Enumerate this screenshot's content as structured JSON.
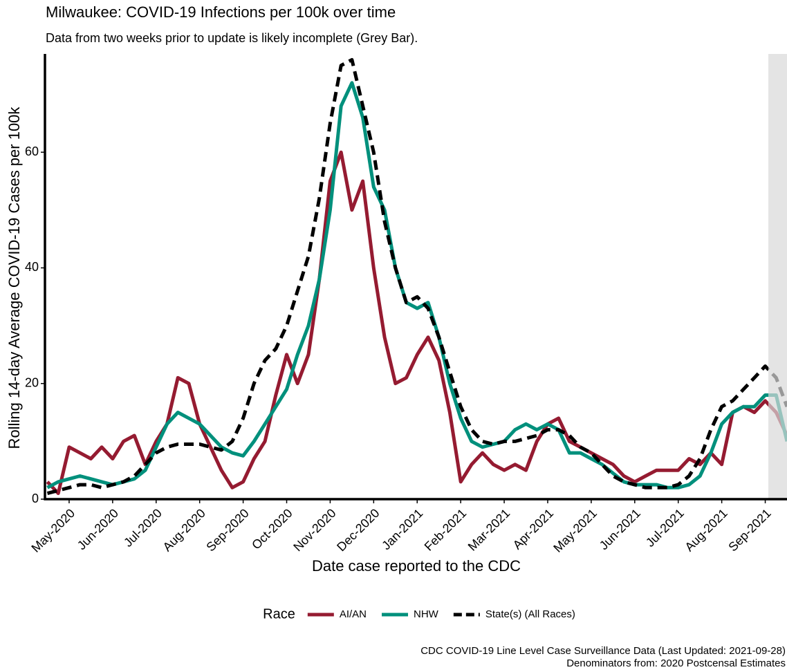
{
  "chart_data": {
    "type": "line",
    "title": "Milwaukee: COVID-19 Infections per 100k over time",
    "subtitle": "Data from two weeks prior to update is likely incomplete (Grey Bar).",
    "x_label": "Date case reported to the CDC",
    "y_label": "Rolling 14-day Average COVID-19 Cases per 100k",
    "legend_title": "Race",
    "legend_position": "bottom",
    "caption": [
      "CDC COVID-19 Line Level Case Surveillance Data (Last Updated: 2021-09-28)",
      "Denominators from: 2020 Postcensal Estimates"
    ],
    "categories": [
      null,
      null,
      "May-2020",
      null,
      null,
      null,
      "Jun-2020",
      null,
      null,
      null,
      "Jul-2020",
      null,
      null,
      null,
      "Aug-2020",
      null,
      null,
      null,
      "Sep-2020",
      null,
      null,
      null,
      "Oct-2020",
      null,
      null,
      null,
      "Nov-2020",
      null,
      null,
      null,
      "Dec-2020",
      null,
      null,
      null,
      "Jan-2021",
      null,
      null,
      null,
      "Feb-2021",
      null,
      null,
      null,
      "Mar-2021",
      null,
      null,
      null,
      "Apr-2021",
      null,
      null,
      null,
      "May-2021",
      null,
      null,
      null,
      "Jun-2021",
      null,
      null,
      null,
      "Jul-2021",
      null,
      null,
      null,
      "Aug-2021",
      null,
      null,
      null,
      "Sep-2021",
      null,
      null
    ],
    "ylim": [
      0,
      77
    ],
    "yticks": [
      0,
      20,
      40,
      60
    ],
    "grid": false,
    "series": [
      {
        "name": "AI/AN",
        "color": "#951b31",
        "linestyle": "solid",
        "values": [
          3,
          1,
          9,
          8,
          7,
          9,
          7,
          10,
          11,
          6,
          10,
          13,
          21,
          20,
          13,
          9,
          5,
          2,
          3,
          7,
          10,
          18,
          25,
          20,
          25,
          38,
          55,
          60,
          50,
          55,
          40,
          28,
          20,
          21,
          25,
          28,
          24,
          15,
          3,
          6,
          8,
          6,
          5,
          6,
          5,
          10,
          13,
          14,
          10,
          9,
          8,
          7,
          6,
          4,
          3,
          4,
          5,
          5,
          5,
          7,
          6,
          8,
          6,
          15,
          16,
          15,
          17,
          15,
          11
        ]
      },
      {
        "name": "NHW",
        "color": "#00907c",
        "linestyle": "solid",
        "values": [
          2,
          3,
          3.5,
          4,
          3.5,
          3,
          2.5,
          3,
          3.5,
          5,
          9,
          13,
          15,
          14,
          13,
          11,
          9,
          8,
          7.5,
          10,
          13,
          16,
          19,
          25,
          30,
          38,
          50,
          68,
          72,
          66,
          54,
          50,
          40,
          34,
          33,
          34,
          28,
          20,
          14,
          10,
          9,
          9.5,
          10,
          12,
          13,
          12,
          13,
          12,
          8,
          8,
          7,
          6,
          4.5,
          3,
          2.5,
          2.5,
          2.5,
          2,
          2,
          2.5,
          4,
          8,
          13,
          15,
          16,
          16,
          18,
          18,
          10
        ]
      },
      {
        "name": "State(s) (All Races)",
        "color": "#000000",
        "linestyle": "dashed",
        "values": [
          1,
          1.5,
          2,
          2.5,
          2.5,
          2,
          2.5,
          3,
          4,
          6,
          8,
          9,
          9.5,
          9.5,
          9.5,
          9,
          8.5,
          10,
          14,
          20,
          24,
          26,
          30,
          36,
          42,
          52,
          65,
          75,
          76,
          68,
          60,
          48,
          40,
          34,
          35,
          33,
          28,
          22,
          16,
          12,
          10,
          9.5,
          10,
          10,
          10.5,
          11,
          12,
          12,
          11,
          9,
          8,
          6,
          4,
          3,
          2.5,
          2,
          2,
          2,
          2.5,
          4,
          7,
          12,
          16,
          17,
          19,
          21,
          23,
          21,
          16
        ]
      }
    ]
  }
}
